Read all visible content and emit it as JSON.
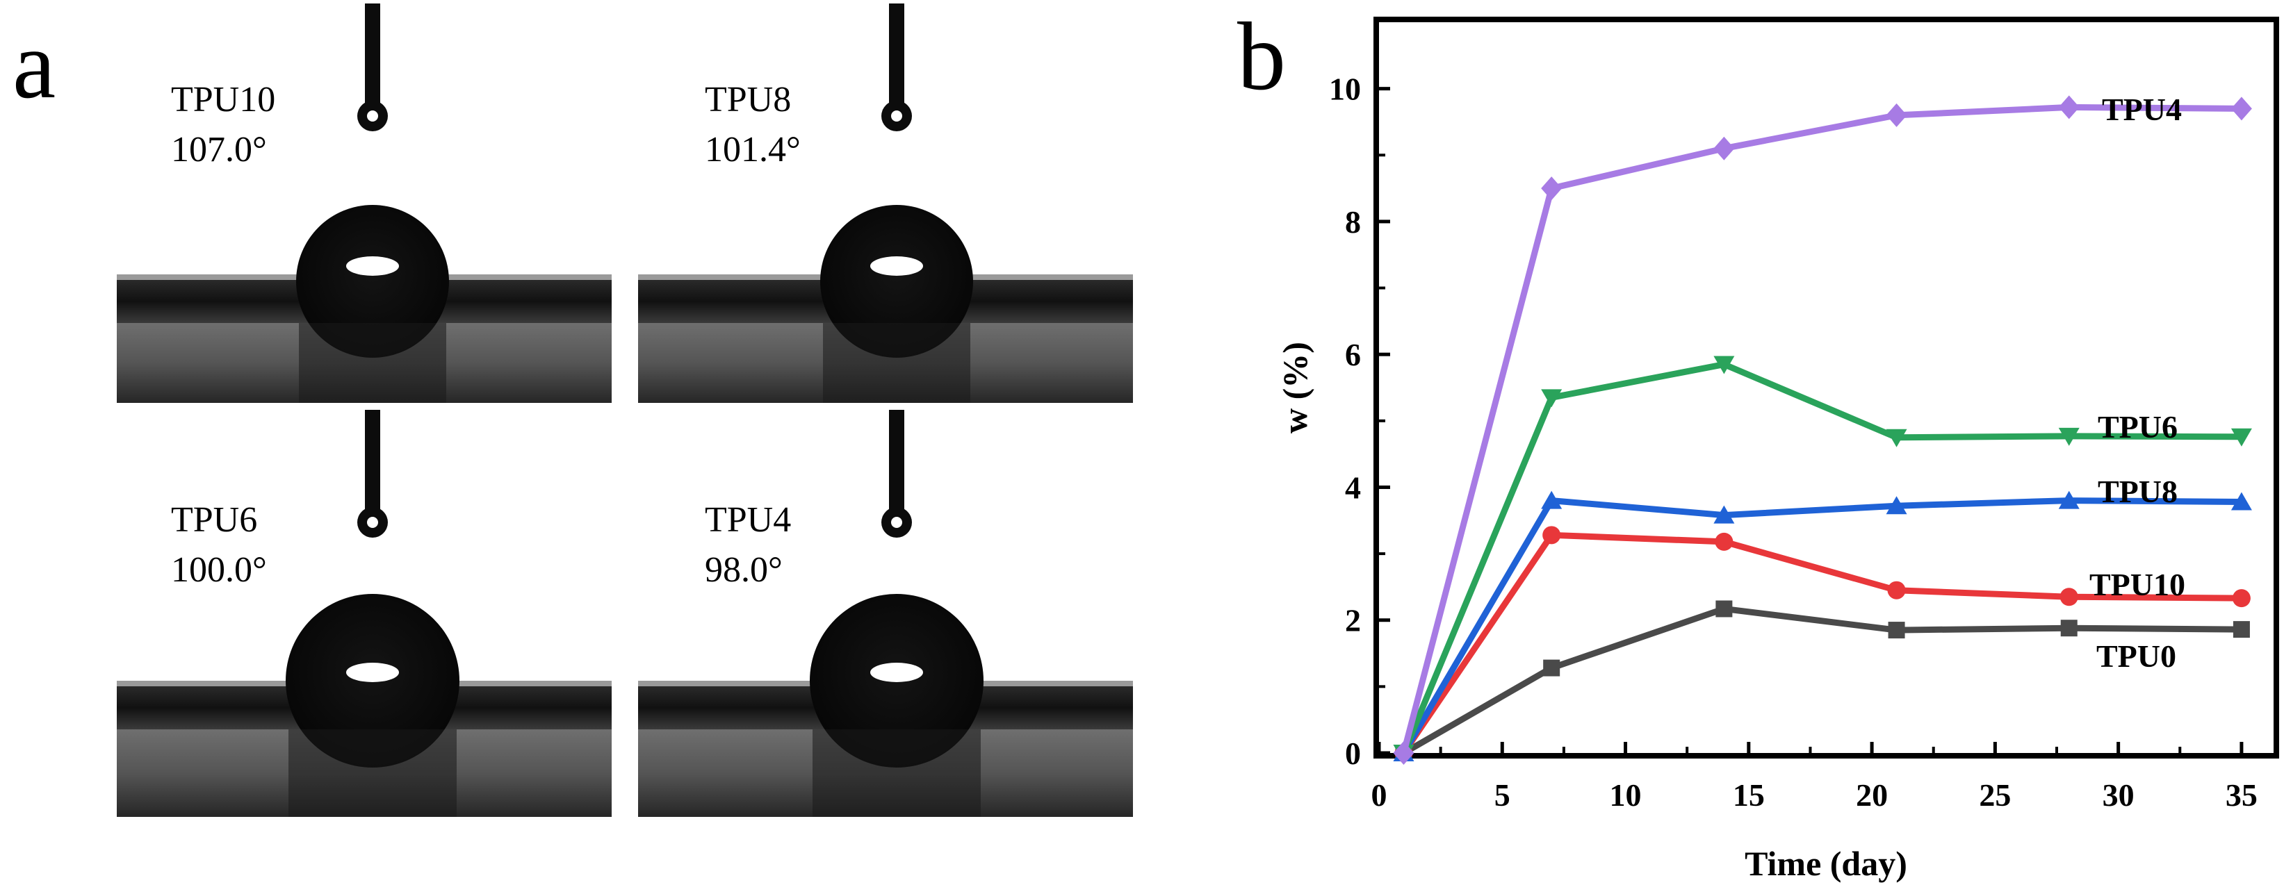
{
  "panel_a": {
    "label": "a",
    "images": [
      {
        "sample": "TPU10",
        "angle": "107.0°",
        "drop": "normal"
      },
      {
        "sample": "TPU8",
        "angle": "101.4°",
        "drop": "normal"
      },
      {
        "sample": "TPU6",
        "angle": "100.0°",
        "drop": "large"
      },
      {
        "sample": "TPU4",
        "angle": "98.0°",
        "drop": "large"
      }
    ]
  },
  "panel_b": {
    "label": "b"
  },
  "colors": {
    "TPU4": "#a77be4",
    "TPU6": "#2aa35b",
    "TPU8": "#1f62d6",
    "TPU10": "#e8373a",
    "TPU0": "#4a4a4a"
  },
  "chart_data": {
    "type": "line",
    "xlabel": "Time (day)",
    "ylabel": "w (%)",
    "xlim": [
      0,
      36.3
    ],
    "ylim": [
      0,
      11
    ],
    "xticks": [
      0,
      5,
      10,
      15,
      20,
      25,
      30,
      35
    ],
    "yticks": [
      0,
      2,
      4,
      6,
      8,
      10
    ],
    "grid": false,
    "legend": "labels placed at line ends",
    "x": [
      1,
      7,
      14,
      21,
      28,
      35
    ],
    "series": [
      {
        "name": "TPU4",
        "marker": "diamond",
        "values": [
          0,
          8.5,
          9.1,
          9.6,
          9.72,
          9.7
        ]
      },
      {
        "name": "TPU6",
        "marker": "triangle-down",
        "values": [
          0,
          5.35,
          5.85,
          4.75,
          4.77,
          4.76
        ]
      },
      {
        "name": "TPU8",
        "marker": "triangle-up",
        "values": [
          0,
          3.8,
          3.58,
          3.72,
          3.8,
          3.78
        ]
      },
      {
        "name": "TPU10",
        "marker": "circle",
        "values": [
          0,
          3.28,
          3.18,
          2.45,
          2.35,
          2.33
        ]
      },
      {
        "name": "TPU0",
        "marker": "square",
        "values": [
          0,
          1.28,
          2.17,
          1.85,
          1.88,
          1.86
        ]
      }
    ]
  }
}
